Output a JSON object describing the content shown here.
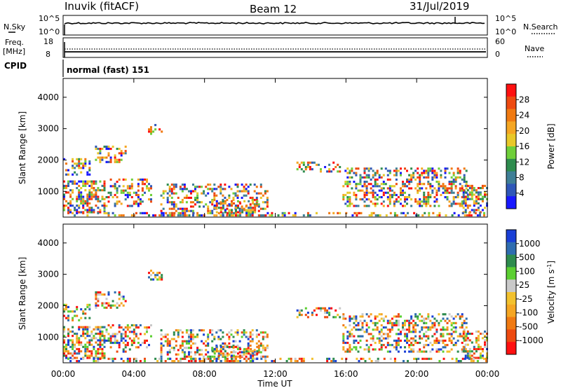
{
  "header": {
    "station": "Inuvik (fitACF)",
    "beam": "Beam 12",
    "date": "31/Jul/2019",
    "cpid_text": "normal (fast) 151"
  },
  "sky_panel": {
    "left_label": "N.Sky",
    "right_label": "N.Search",
    "left_ticks": [
      "10^5",
      "10^0"
    ],
    "right_ticks": [
      "10^5",
      "10^0"
    ]
  },
  "freq_panel": {
    "left_label_1": "Freq.",
    "left_label_2": "[MHz]",
    "right_label": "Nave",
    "left_ticks": [
      "18",
      "8"
    ],
    "right_ticks": [
      "60",
      "0"
    ],
    "cpid_label": "CPID"
  },
  "chart_data": [
    {
      "type": "heatmap",
      "name": "power",
      "ylabel": "Slant Range [km]",
      "yticks": [
        1000,
        2000,
        3000,
        4000
      ],
      "ylim": [
        180,
        4600
      ],
      "xticks": [
        "00:00",
        "04:00",
        "08:00",
        "12:00",
        "16:00",
        "20:00",
        "00:00"
      ],
      "xlim_hours": [
        0,
        24
      ],
      "colorbar_label": "Power [dB]",
      "colorbar_ticks": [
        "4",
        "8",
        "12",
        "16",
        "20",
        "24",
        "28"
      ],
      "colorbar_colors": [
        "#1818ff",
        "#2f57b8",
        "#3f7f96",
        "#2e8c4e",
        "#6fcf3a",
        "#e8c829",
        "#f5a623",
        "#f07a12",
        "#ee4a10",
        "#ff1010"
      ]
    },
    {
      "type": "heatmap",
      "name": "velocity",
      "ylabel": "Slant Range [km]",
      "yticks": [
        1000,
        2000,
        3000,
        4000
      ],
      "ylim": [
        180,
        4600
      ],
      "xticks": [
        "00:00",
        "04:00",
        "08:00",
        "12:00",
        "16:00",
        "20:00",
        "00:00"
      ],
      "xlim_hours": [
        0,
        24
      ],
      "xlabel": "Time UT",
      "colorbar_label": "Velocity [m s",
      "colorbar_label_sup": "-1",
      "colorbar_label_end": "]",
      "colorbar_ticks": [
        "1000",
        "500",
        "100",
        "25",
        "-25",
        "-100",
        "-500",
        "-1000"
      ],
      "colorbar_colors": [
        "#1a3fd6",
        "#2f6db0",
        "#2e8c4e",
        "#5ccf32",
        "#c9c9c9",
        "#f2c12e",
        "#f5a623",
        "#f07a12",
        "#ee4a10",
        "#ff1010"
      ]
    }
  ]
}
